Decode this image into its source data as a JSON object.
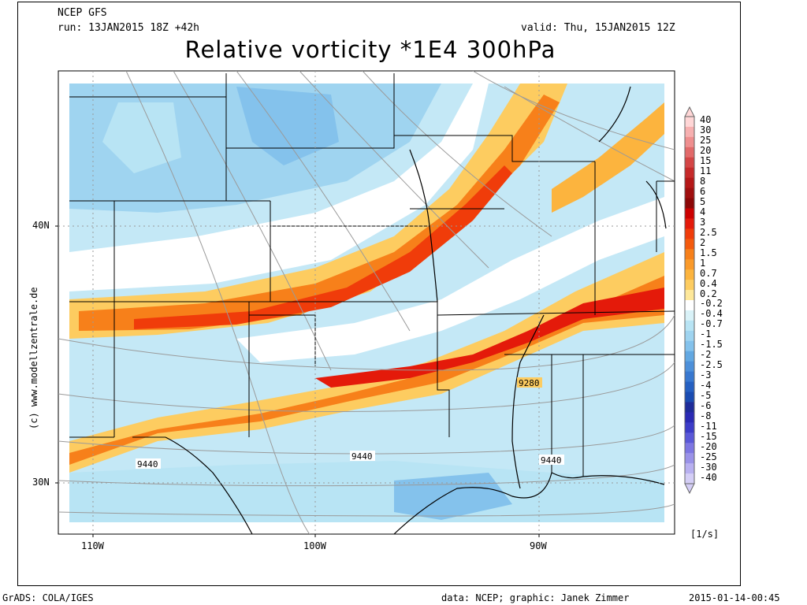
{
  "header": {
    "model": "NCEP GFS",
    "run": "run: 13JAN2015 18Z +42h",
    "valid": "valid: Thu, 15JAN2015 12Z",
    "title": "Relative vorticity *1E4 300hPa"
  },
  "axes": {
    "lat_labels": [
      "40N",
      "30N"
    ],
    "lon_labels": [
      "110W",
      "100W",
      "90W"
    ]
  },
  "contour_labels": [
    "9280",
    "9440",
    "9440",
    "9440"
  ],
  "credit": "(c) www.modellzentrale.de",
  "colorbar": {
    "labels": [
      "40",
      "30",
      "25",
      "20",
      "15",
      "11",
      "8",
      "6",
      "5",
      "4",
      "3",
      "2.5",
      "2",
      "1.5",
      "1",
      "0.7",
      "0.4",
      "0.2",
      "-0.2",
      "-0.4",
      "-0.7",
      "-1",
      "-1.5",
      "-2",
      "-2.5",
      "-3",
      "-4",
      "-5",
      "-6",
      "-8",
      "-11",
      "-15",
      "-20",
      "-25",
      "-30",
      "-40"
    ],
    "colors": [
      "#ffd6d6",
      "#f7b0b0",
      "#ef8f8f",
      "#e26a6a",
      "#d44646",
      "#c62a2a",
      "#b51818",
      "#a00f0f",
      "#8c0707",
      "#cc0000",
      "#e41a0a",
      "#f03c0a",
      "#f45a0d",
      "#f7801a",
      "#fa9a2a",
      "#fcb43e",
      "#fdcc60",
      "#fee89a",
      "#ffffff",
      "#d9f2f8",
      "#b8e4f4",
      "#9fd4f0",
      "#84c2ec",
      "#62a8e2",
      "#4d90da",
      "#3878d0",
      "#2560c2",
      "#1a4cb2",
      "#1e2c9a",
      "#2a2ab4",
      "#3c3cc8",
      "#5a58d8",
      "#7d76e2",
      "#9a92e8",
      "#b8b0f0",
      "#d4cef6"
    ],
    "unit": "[1/s]"
  },
  "footer": {
    "left": "GrADS: COLA/IGES",
    "center": "data: NCEP; graphic: Janek Zimmer",
    "right": "2015-01-14-00:45"
  }
}
